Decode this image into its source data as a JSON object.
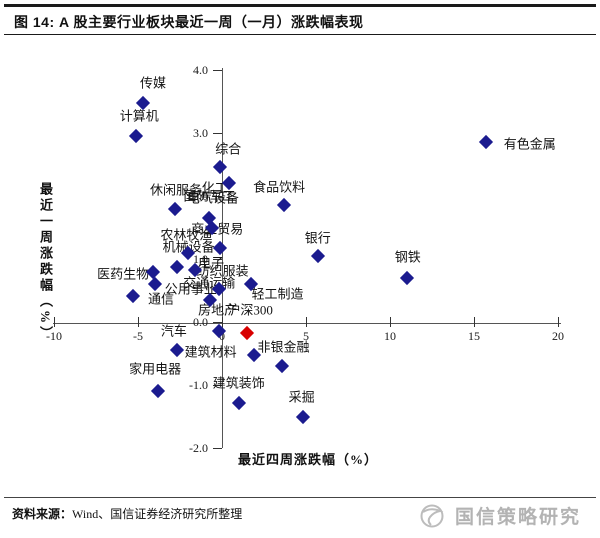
{
  "figure": {
    "title": "图 14: A 股主要行业板块最近一周（一月）涨跌幅表现"
  },
  "source": {
    "prefix": "资料来源：",
    "text": "Wind、国信证券经济研究所整理"
  },
  "watermark": {
    "text": "国信策略研究",
    "icon": "guosen-logo-icon"
  },
  "chart_data": {
    "type": "scatter",
    "title": "",
    "xlabel": "最近四周涨跌幅（%）",
    "ylabel": "最近一周涨跌幅（%）",
    "xlim": [
      -10,
      20
    ],
    "ylim": [
      -2.0,
      4.0
    ],
    "grid": false,
    "legend": "none",
    "x_tick_labels": [
      "-10",
      "-5",
      "0",
      "5",
      "10",
      "15",
      "20"
    ],
    "x_tick_values": [
      -10,
      -5,
      0,
      5,
      10,
      15,
      20
    ],
    "y_tick_labels": [
      "4.0",
      "3.0",
      "2.0",
      "1.0",
      "0.0",
      "-1.0",
      "-2.0"
    ],
    "y_tick_values": [
      4.0,
      3.0,
      2.0,
      1.0,
      0.0,
      -1.0,
      -2.0
    ],
    "colors": {
      "industry_point": "#1b1b8f",
      "benchmark_point": "#d80000",
      "label_text": "#141414"
    },
    "series": [
      {
        "name": "传媒",
        "x": -4.7,
        "y": 3.47,
        "dx": 10,
        "dy": -21
      },
      {
        "name": "计算机",
        "x": -5.1,
        "y": 2.95,
        "dx": 3,
        "dy": -21
      },
      {
        "name": "有色金属",
        "x": 15.7,
        "y": 2.85,
        "dx": 44,
        "dy": 1
      },
      {
        "name": "综合",
        "x": -0.1,
        "y": 2.46,
        "dx": 8,
        "dy": -19
      },
      {
        "name": "化工",
        "x": 0.4,
        "y": 2.2,
        "dx": -14,
        "dy": 4
      },
      {
        "name": "休闲服务",
        "x": -2.8,
        "y": 1.8,
        "dx": 1,
        "dy": -20
      },
      {
        "name": "食品饮料",
        "x": 3.7,
        "y": 1.85,
        "dx": -5,
        "dy": -19
      },
      {
        "name": "国防军工",
        "x": -0.8,
        "y": 1.65,
        "dx": 1,
        "dy": -23
      },
      {
        "name": "电气设备",
        "x": -0.6,
        "y": 1.5,
        "dx": 1,
        "dy": -31
      },
      {
        "name": "商业贸易",
        "x": -0.1,
        "y": 1.17,
        "dx": -3,
        "dy": -20
      },
      {
        "name": "农林牧渔",
        "x": -2.0,
        "y": 1.1,
        "dx": -2,
        "dy": -19
      },
      {
        "name": "银行",
        "x": 5.7,
        "y": 1.05,
        "dx": 0,
        "dy": -19
      },
      {
        "name": "机械设备",
        "x": -2.7,
        "y": 0.88,
        "dx": 12,
        "dy": -21
      },
      {
        "name": "电子",
        "x": -1.6,
        "y": 0.83,
        "dx": 16,
        "dy": -8
      },
      {
        "name": "医药生物",
        "x": -4.1,
        "y": 0.8,
        "dx": -30,
        "dy": 1
      },
      {
        "name": "钢铁",
        "x": 11.0,
        "y": 0.7,
        "dx": 1,
        "dy": -22
      },
      {
        "name": "轻工制造",
        "x": 1.7,
        "y": 0.6,
        "dx": 27,
        "dy": 9
      },
      {
        "name": "公用事业",
        "x": -4.0,
        "y": 0.6,
        "dx": 36,
        "dy": 4
      },
      {
        "name": "纺织服装",
        "x": -0.2,
        "y": 0.52,
        "dx": 4,
        "dy": -19
      },
      {
        "name": "通信",
        "x": -5.3,
        "y": 0.41,
        "dx": 28,
        "dy": 2
      },
      {
        "name": "交通运输",
        "x": -0.7,
        "y": 0.35,
        "dx": -1,
        "dy": -18
      },
      {
        "name": "房地产",
        "x": -0.2,
        "y": -0.14,
        "dx": -1,
        "dy": -22
      },
      {
        "name": "沪深300",
        "x": 1.5,
        "y": -0.17,
        "dx": 3,
        "dy": -24,
        "benchmark": true
      },
      {
        "name": "汽车",
        "x": 1.9,
        "y": -0.52,
        "dx": -80,
        "dy": -25
      },
      {
        "name": "非银金融",
        "x": 3.6,
        "y": -0.7,
        "dx": 1,
        "dy": -20
      },
      {
        "name": "建筑材料",
        "x": -2.7,
        "y": -0.44,
        "dx": 34,
        "dy": 1
      },
      {
        "name": "家用电器",
        "x": -3.8,
        "y": -1.1,
        "dx": -3,
        "dy": -23
      },
      {
        "name": "建筑装饰",
        "x": 1.0,
        "y": -1.28,
        "dx": 0,
        "dy": -21
      },
      {
        "name": "采掘",
        "x": 4.8,
        "y": -1.5,
        "dx": -1,
        "dy": -21
      }
    ]
  }
}
